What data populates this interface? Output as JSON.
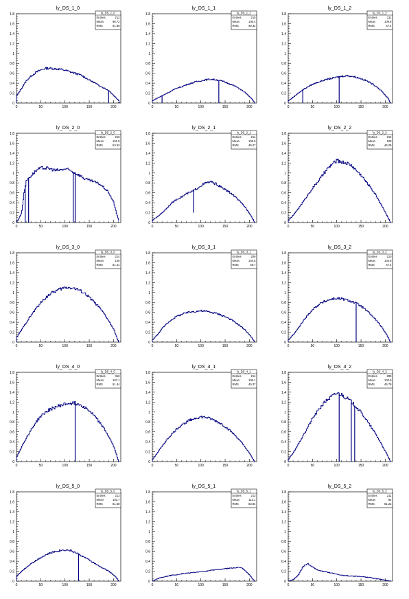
{
  "colors": {
    "line": "#00007f",
    "axis": "#000000",
    "background": "#ffffff"
  },
  "panels": [
    {
      "title": "ly_DS_1_0",
      "stats": {
        "name": "ly_DS_1_0",
        "entries": "212",
        "mean": "96.72",
        "rms": "51.68"
      },
      "chart_data": {
        "type": "histogram",
        "title": "ly_DS_1_0",
        "xlim": [
          0,
          215
        ],
        "ylim": [
          0,
          1.8
        ],
        "x": [
          0,
          10,
          20,
          30,
          40,
          50,
          60,
          70,
          80,
          90,
          100,
          110,
          120,
          130,
          140,
          150,
          160,
          170,
          180,
          190,
          200,
          205,
          210,
          212
        ],
        "values": [
          0.15,
          0.3,
          0.45,
          0.55,
          0.62,
          0.67,
          0.7,
          0.7,
          0.69,
          0.68,
          0.66,
          0.63,
          0.6,
          0.57,
          0.52,
          0.46,
          0.41,
          0.35,
          0.3,
          0.25,
          0.15,
          0.1,
          0.05,
          0.0
        ],
        "dips": [
          {
            "x": 190,
            "y": 0.0
          }
        ]
      }
    },
    {
      "title": "ly_DS_1_1",
      "stats": {
        "name": "ly_DS_1_1",
        "entries": "210",
        "mean": "106.4",
        "rms": "49.32"
      },
      "chart_data": {
        "type": "histogram",
        "title": "ly_DS_1_1",
        "xlim": [
          0,
          215
        ],
        "ylim": [
          0,
          1.8
        ],
        "x": [
          0,
          10,
          20,
          30,
          40,
          50,
          60,
          70,
          80,
          90,
          100,
          110,
          120,
          130,
          140,
          150,
          160,
          170,
          180,
          190,
          200,
          205,
          210
        ],
        "values": [
          0.05,
          0.1,
          0.15,
          0.2,
          0.25,
          0.3,
          0.33,
          0.37,
          0.4,
          0.43,
          0.45,
          0.47,
          0.48,
          0.47,
          0.45,
          0.42,
          0.38,
          0.34,
          0.28,
          0.22,
          0.12,
          0.08,
          0.0
        ],
        "dips": [
          {
            "x": 20,
            "y": 0.0
          },
          {
            "x": 137,
            "y": 0.0
          }
        ]
      }
    },
    {
      "title": "ly_DS_1_2",
      "stats": {
        "name": "ly_DS_1_2",
        "entries": "211",
        "mean": "109.8",
        "rms": "47.4"
      },
      "chart_data": {
        "type": "histogram",
        "title": "ly_DS_1_2",
        "xlim": [
          0,
          215
        ],
        "ylim": [
          0,
          1.8
        ],
        "x": [
          0,
          10,
          20,
          30,
          40,
          50,
          60,
          70,
          80,
          90,
          100,
          110,
          120,
          130,
          140,
          150,
          160,
          170,
          180,
          190,
          200,
          205,
          210
        ],
        "values": [
          0.05,
          0.12,
          0.2,
          0.27,
          0.33,
          0.38,
          0.42,
          0.45,
          0.48,
          0.5,
          0.52,
          0.54,
          0.55,
          0.54,
          0.52,
          0.49,
          0.45,
          0.4,
          0.34,
          0.26,
          0.15,
          0.1,
          0.0
        ],
        "dips": [
          {
            "x": 30,
            "y": 0.0
          },
          {
            "x": 105,
            "y": 0.0
          }
        ]
      }
    },
    {
      "title": "ly_DS_2_0",
      "stats": {
        "name": "ly_DS_2_0",
        "entries": "210",
        "mean": "101.8",
        "rms": "53.63"
      },
      "chart_data": {
        "type": "histogram",
        "title": "ly_DS_2_0",
        "xlim": [
          0,
          215
        ],
        "ylim": [
          0,
          1.8
        ],
        "x": [
          0,
          10,
          15,
          20,
          30,
          40,
          50,
          60,
          70,
          80,
          90,
          100,
          110,
          120,
          130,
          140,
          150,
          160,
          170,
          180,
          190,
          200,
          205,
          210
        ],
        "values": [
          0.0,
          0.2,
          0.6,
          0.85,
          0.95,
          1.05,
          1.1,
          1.1,
          1.08,
          1.05,
          1.06,
          1.08,
          1.05,
          1.0,
          0.95,
          0.88,
          0.85,
          0.82,
          0.78,
          0.7,
          0.6,
          0.4,
          0.2,
          0.05
        ],
        "dips": [
          {
            "x": 18,
            "y": 0.0
          },
          {
            "x": 25,
            "y": 0.0
          },
          {
            "x": 117,
            "y": 0.0
          },
          {
            "x": 121,
            "y": 0.0
          }
        ]
      }
    },
    {
      "title": "ly_DS_2_1",
      "stats": {
        "name": "ly_DS_2_1",
        "entries": "214",
        "mean": "106.9",
        "rms": "49.27"
      },
      "chart_data": {
        "type": "histogram",
        "title": "ly_DS_2_1",
        "xlim": [
          0,
          215
        ],
        "ylim": [
          0,
          1.8
        ],
        "x": [
          0,
          10,
          20,
          30,
          40,
          50,
          60,
          70,
          80,
          90,
          100,
          110,
          120,
          130,
          140,
          150,
          160,
          170,
          180,
          190,
          200,
          205,
          210
        ],
        "values": [
          0.05,
          0.12,
          0.2,
          0.3,
          0.4,
          0.47,
          0.52,
          0.58,
          0.62,
          0.68,
          0.75,
          0.8,
          0.82,
          0.78,
          0.72,
          0.66,
          0.6,
          0.52,
          0.42,
          0.32,
          0.18,
          0.1,
          0.0
        ],
        "dips": [
          {
            "x": 85,
            "y": 0.2
          }
        ]
      }
    },
    {
      "title": "ly_DS_2_2",
      "stats": {
        "name": "ly_DS_2_2",
        "entries": "212",
        "mean": "108",
        "rms": "46.29"
      },
      "chart_data": {
        "type": "histogram",
        "title": "ly_DS_2_2",
        "xlim": [
          0,
          215
        ],
        "ylim": [
          0,
          1.8
        ],
        "x": [
          0,
          10,
          20,
          30,
          40,
          50,
          60,
          70,
          80,
          90,
          100,
          110,
          120,
          130,
          140,
          150,
          160,
          170,
          180,
          190,
          200,
          205,
          210
        ],
        "values": [
          0.05,
          0.15,
          0.28,
          0.42,
          0.56,
          0.7,
          0.82,
          0.95,
          1.08,
          1.18,
          1.25,
          1.22,
          1.2,
          1.15,
          1.05,
          0.95,
          0.82,
          0.7,
          0.55,
          0.38,
          0.2,
          0.1,
          0.0
        ],
        "dips": []
      }
    },
    {
      "title": "ly_DS_3_0",
      "stats": {
        "name": "ly_DS_3_0",
        "entries": "214",
        "mean": "105",
        "rms": "51.41"
      },
      "chart_data": {
        "type": "histogram",
        "title": "ly_DS_3_0",
        "xlim": [
          0,
          215
        ],
        "ylim": [
          0,
          1.8
        ],
        "x": [
          0,
          10,
          20,
          30,
          40,
          50,
          60,
          70,
          80,
          90,
          100,
          110,
          120,
          130,
          140,
          150,
          160,
          170,
          180,
          190,
          200,
          205,
          210
        ],
        "values": [
          0.1,
          0.25,
          0.4,
          0.55,
          0.68,
          0.8,
          0.9,
          0.98,
          1.03,
          1.07,
          1.1,
          1.1,
          1.08,
          1.04,
          0.98,
          0.9,
          0.8,
          0.7,
          0.57,
          0.42,
          0.25,
          0.12,
          0.0
        ],
        "dips": []
      }
    },
    {
      "title": "ly_DS_3_1",
      "stats": {
        "name": "ly_DS_3_1",
        "entries": "209",
        "mean": "104.5",
        "rms": "49.7"
      },
      "chart_data": {
        "type": "histogram",
        "title": "ly_DS_3_1",
        "xlim": [
          0,
          215
        ],
        "ylim": [
          0,
          1.8
        ],
        "x": [
          0,
          10,
          20,
          30,
          40,
          50,
          60,
          70,
          80,
          90,
          100,
          110,
          120,
          130,
          140,
          150,
          160,
          170,
          180,
          190,
          200,
          205,
          210
        ],
        "values": [
          0.05,
          0.15,
          0.28,
          0.38,
          0.46,
          0.52,
          0.56,
          0.59,
          0.61,
          0.62,
          0.63,
          0.62,
          0.6,
          0.58,
          0.55,
          0.51,
          0.46,
          0.4,
          0.33,
          0.25,
          0.14,
          0.08,
          0.0
        ],
        "dips": []
      }
    },
    {
      "title": "ly_DS_3_2",
      "stats": {
        "name": "ly_DS_3_2",
        "entries": "210",
        "mean": "104.8",
        "rms": "47.4"
      },
      "chart_data": {
        "type": "histogram",
        "title": "ly_DS_3_2",
        "xlim": [
          0,
          215
        ],
        "ylim": [
          0,
          1.8
        ],
        "x": [
          0,
          10,
          20,
          30,
          40,
          50,
          60,
          70,
          80,
          90,
          100,
          110,
          120,
          130,
          140,
          150,
          160,
          170,
          180,
          190,
          200,
          205,
          210
        ],
        "values": [
          0.05,
          0.15,
          0.28,
          0.42,
          0.55,
          0.66,
          0.74,
          0.8,
          0.84,
          0.87,
          0.88,
          0.87,
          0.85,
          0.82,
          0.78,
          0.72,
          0.64,
          0.55,
          0.45,
          0.33,
          0.18,
          0.1,
          0.0
        ],
        "dips": [
          {
            "x": 140,
            "y": 0.0
          }
        ]
      }
    },
    {
      "title": "ly_DS_4_0",
      "stats": {
        "name": "ly_DS_4_0",
        "entries": "310",
        "mean": "107.1",
        "rms": "51.44"
      },
      "chart_data": {
        "type": "histogram",
        "title": "ly_DS_4_0",
        "xlim": [
          0,
          215
        ],
        "ylim": [
          0,
          1.8
        ],
        "x": [
          0,
          10,
          20,
          30,
          40,
          50,
          60,
          70,
          80,
          90,
          100,
          110,
          120,
          130,
          140,
          150,
          160,
          170,
          180,
          190,
          200,
          205,
          210
        ],
        "values": [
          0.1,
          0.3,
          0.48,
          0.65,
          0.8,
          0.92,
          1.0,
          1.06,
          1.1,
          1.13,
          1.16,
          1.18,
          1.18,
          1.15,
          1.1,
          1.02,
          0.92,
          0.8,
          0.66,
          0.5,
          0.3,
          0.15,
          0.0
        ],
        "dips": [
          {
            "x": 121,
            "y": 0.0
          }
        ]
      }
    },
    {
      "title": "ly_DS_4_1",
      "stats": {
        "name": "ly_DS_4_1",
        "entries": "214",
        "mean": "106.1",
        "rms": "49.37"
      },
      "chart_data": {
        "type": "histogram",
        "title": "ly_DS_4_1",
        "xlim": [
          0,
          215
        ],
        "ylim": [
          0,
          1.8
        ],
        "x": [
          0,
          10,
          20,
          30,
          40,
          50,
          60,
          70,
          80,
          90,
          100,
          110,
          120,
          130,
          140,
          150,
          160,
          170,
          180,
          190,
          200,
          205,
          210
        ],
        "values": [
          0.05,
          0.18,
          0.32,
          0.45,
          0.56,
          0.66,
          0.74,
          0.8,
          0.85,
          0.88,
          0.9,
          0.89,
          0.86,
          0.82,
          0.77,
          0.7,
          0.62,
          0.53,
          0.42,
          0.3,
          0.16,
          0.08,
          0.0
        ],
        "dips": []
      }
    },
    {
      "title": "ly_DS_4_2",
      "stats": {
        "name": "ly_DS_4_2",
        "entries": "209",
        "mean": "103.9",
        "rms": "46.79"
      },
      "chart_data": {
        "type": "histogram",
        "title": "ly_DS_4_2",
        "xlim": [
          0,
          215
        ],
        "ylim": [
          0,
          1.8
        ],
        "x": [
          0,
          10,
          20,
          30,
          40,
          50,
          60,
          70,
          80,
          90,
          100,
          110,
          120,
          130,
          140,
          150,
          160,
          170,
          180,
          190,
          200,
          205,
          210
        ],
        "values": [
          0.05,
          0.18,
          0.35,
          0.52,
          0.7,
          0.88,
          1.02,
          1.15,
          1.25,
          1.32,
          1.38,
          1.35,
          1.28,
          1.2,
          1.1,
          0.98,
          0.85,
          0.7,
          0.55,
          0.38,
          0.2,
          0.1,
          0.0
        ],
        "dips": [
          {
            "x": 105,
            "y": 0.0
          },
          {
            "x": 130,
            "y": 0.0
          },
          {
            "x": 137,
            "y": 0.0
          }
        ]
      }
    },
    {
      "title": "ly_DS_5_0",
      "stats": {
        "name": "ly_DS_5_0",
        "entries": "213",
        "mean": "102.7",
        "rms": "51.68"
      },
      "chart_data": {
        "type": "histogram",
        "title": "ly_DS_5_0",
        "xlim": [
          0,
          215
        ],
        "ylim": [
          0,
          1.8
        ],
        "x": [
          0,
          10,
          20,
          30,
          40,
          50,
          60,
          70,
          80,
          90,
          100,
          110,
          120,
          130,
          140,
          150,
          160,
          170,
          180,
          190,
          200,
          205,
          210
        ],
        "values": [
          0.1,
          0.2,
          0.28,
          0.36,
          0.42,
          0.48,
          0.53,
          0.57,
          0.6,
          0.62,
          0.63,
          0.62,
          0.58,
          0.53,
          0.48,
          0.42,
          0.36,
          0.3,
          0.25,
          0.2,
          0.12,
          0.07,
          0.0
        ],
        "dips": [
          {
            "x": 128,
            "y": 0.0
          }
        ]
      }
    },
    {
      "title": "ly_DS_5_1",
      "stats": {
        "name": "ly_DS_5_1",
        "entries": "213",
        "mean": "113.1",
        "rms": "53.84"
      },
      "chart_data": {
        "type": "histogram",
        "title": "ly_DS_5_1",
        "xlim": [
          0,
          215
        ],
        "ylim": [
          0,
          1.8
        ],
        "x": [
          0,
          10,
          20,
          30,
          40,
          50,
          60,
          70,
          80,
          90,
          100,
          110,
          120,
          130,
          140,
          150,
          160,
          170,
          180,
          190,
          200,
          205,
          210
        ],
        "values": [
          0.0,
          0.05,
          0.08,
          0.1,
          0.12,
          0.13,
          0.15,
          0.16,
          0.17,
          0.18,
          0.19,
          0.2,
          0.22,
          0.23,
          0.24,
          0.25,
          0.26,
          0.27,
          0.28,
          0.22,
          0.12,
          0.06,
          0.0
        ],
        "dips": []
      }
    },
    {
      "title": "ly_DS_5_2",
      "stats": {
        "name": "ly_DS_5_2",
        "entries": "211",
        "mean": "84",
        "rms": "51.22"
      },
      "chart_data": {
        "type": "histogram",
        "title": "ly_DS_5_2",
        "xlim": [
          0,
          215
        ],
        "ylim": [
          0,
          1.8
        ],
        "x": [
          0,
          10,
          20,
          30,
          40,
          50,
          60,
          70,
          80,
          90,
          100,
          110,
          120,
          130,
          140,
          150,
          160,
          170,
          180,
          190,
          200,
          205,
          210
        ],
        "values": [
          0.0,
          0.03,
          0.12,
          0.3,
          0.35,
          0.28,
          0.22,
          0.2,
          0.18,
          0.16,
          0.14,
          0.12,
          0.11,
          0.1,
          0.1,
          0.09,
          0.08,
          0.07,
          0.05,
          0.04,
          0.02,
          0.01,
          0.0
        ],
        "dips": []
      }
    }
  ],
  "axis": {
    "yticks": [
      "0",
      "0.2",
      "0.4",
      "0.6",
      "0.8",
      "1",
      "1.2",
      "1.4",
      "1.6",
      "1.8"
    ],
    "xticks": [
      "0",
      "50",
      "100",
      "150",
      "200"
    ],
    "stat_labels": {
      "entries": "Entries",
      "mean": "Mean",
      "rms": "RMS"
    }
  }
}
